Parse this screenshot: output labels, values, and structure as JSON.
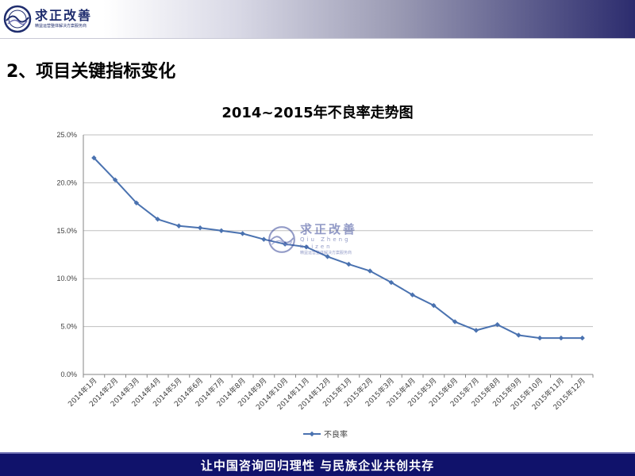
{
  "header": {
    "logo_cn": "求正改善",
    "logo_tagline": "精益运营整体解决方案服务商"
  },
  "page_title": "2、项目关键指标变化",
  "watermark": {
    "cn": "求正改善",
    "en": "Qiu Zheng kaizen",
    "tagline": "精益运营整体解决方案服务商"
  },
  "chart_data": {
    "type": "line",
    "title": "2014~2015年不良率走势图",
    "xlabel": "",
    "ylabel": "",
    "categories": [
      "2014年1月",
      "2014年2月",
      "2014年3月",
      "2014年4月",
      "2014年5月",
      "2014年6月",
      "2014年7月",
      "2014年8月",
      "2014年9月",
      "2014年10月",
      "2014年11月",
      "2014年12月",
      "2015年1月",
      "2015年2月",
      "2015年3月",
      "2015年4月",
      "2015年5月",
      "2015年6月",
      "2015年7月",
      "2015年8月",
      "2015年9月",
      "2015年10月",
      "2015年11月",
      "2015年12月"
    ],
    "series": [
      {
        "name": "不良率",
        "values": [
          22.6,
          20.3,
          17.9,
          16.2,
          15.5,
          15.3,
          15.0,
          14.7,
          14.1,
          13.6,
          13.3,
          12.3,
          11.5,
          10.8,
          9.6,
          8.3,
          7.2,
          5.5,
          4.6,
          5.2,
          4.1,
          3.8,
          3.8,
          3.8
        ]
      }
    ],
    "ylim": [
      0,
      25
    ],
    "yticks": [
      "0.0%",
      "5.0%",
      "10.0%",
      "15.0%",
      "20.0%",
      "25.0%"
    ],
    "grid": true,
    "legend": "bottom",
    "colors": {
      "line": "#4a72b0",
      "grid": "#bfbfbf",
      "axis": "#868686"
    }
  },
  "footer": {
    "text": "让中国咨询回归理性  与民族企业共创共存"
  }
}
